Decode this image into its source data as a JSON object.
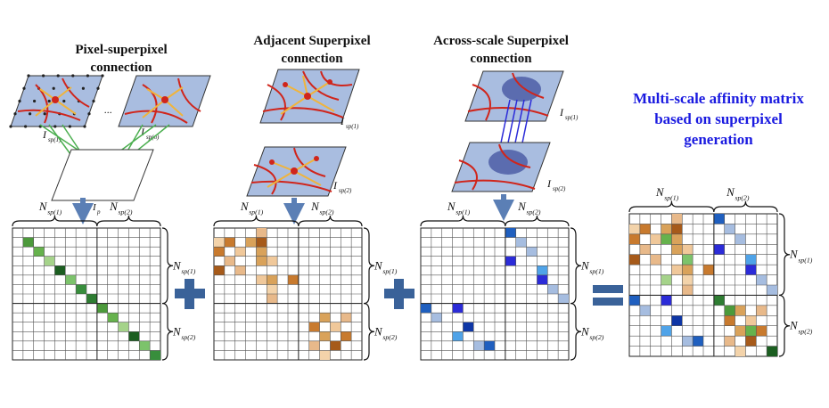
{
  "panels": [
    {
      "title_lines": [
        "Pixel-superpixel",
        "connection"
      ],
      "labels": {
        "left": "I",
        "left_sub": "sp(1)",
        "right": "I",
        "right_sub": "sp(n)",
        "bottom": "I",
        "bottom_sub": "p",
        "ellipsis": "..."
      }
    },
    {
      "title_lines": [
        "Adjacent Superpixel",
        "connection"
      ],
      "labels": {
        "top": "I",
        "top_sub": "sp(1)",
        "bottom": "I",
        "bottom_sub": "sp(2)"
      }
    },
    {
      "title_lines": [
        "Across-scale Superpixel",
        "connection"
      ],
      "labels": {
        "top": "I",
        "top_sub": "sp(1)",
        "bottom": "I",
        "bottom_sub": "sp(2)"
      }
    }
  ],
  "result": {
    "title_lines": [
      "Multi-scale affinity matrix",
      "based on superpixel",
      "generation"
    ]
  },
  "dim_labels": {
    "n1": "N",
    "n1_sub": "sp(1)",
    "n2": "N",
    "n2_sub": "sp(2)"
  },
  "operators": {
    "plus": "+",
    "equals": "="
  },
  "colors": {
    "title_blue": "#1a1ae0",
    "operator": "#3a6299",
    "grid_fill": "#a9bde0",
    "superpixel_boundary": "#d0251b",
    "connection_yellow": "#f0b43c",
    "green_link": "#4caf50",
    "arrow": "#5b7fb5",
    "diag_greens": [
      "#2e7d32",
      "#4c9a3b",
      "#66b24d",
      "#a5d38a",
      "#1b5e20",
      "#7cc36b",
      "#388e3c"
    ],
    "oranges": [
      "#e8b98a",
      "#c87a2e",
      "#f3d3aa",
      "#d9a25a",
      "#a65a1a",
      "#f0c89a"
    ],
    "blues": [
      "#1f5fbf",
      "#2b2bd8",
      "#4fa3e8",
      "#a6bde0",
      "#0e36a6"
    ]
  }
}
